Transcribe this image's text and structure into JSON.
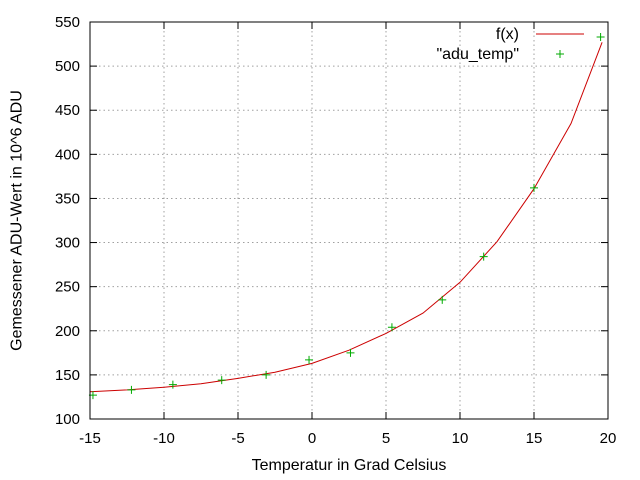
{
  "chart_data": {
    "type": "scatter",
    "xlabel": "Temperatur in Grad Celsius",
    "ylabel": "Gemessener ADU-Wert in 10^6 ADU",
    "xlim": [
      -15,
      20
    ],
    "ylim": [
      100,
      550
    ],
    "x_ticks": [
      -15,
      -10,
      -5,
      0,
      5,
      10,
      15,
      20
    ],
    "y_ticks": [
      100,
      150,
      200,
      250,
      300,
      350,
      400,
      450,
      500,
      550
    ],
    "x_tick_labels": [
      "-15",
      "-10",
      "-5",
      "0",
      "5",
      "10",
      "15",
      "20"
    ],
    "y_tick_labels": [
      "100",
      "150",
      "200",
      "250",
      "300",
      "350",
      "400",
      "450",
      "500",
      "550"
    ],
    "grid": true,
    "legend_position": "top-right",
    "series": [
      {
        "name": "f(x)",
        "kind": "line",
        "color": "#cc0000",
        "x": [
          -15,
          -12.5,
          -10,
          -7.5,
          -5,
          -2.5,
          0,
          2.5,
          5,
          7.5,
          10,
          12.5,
          15,
          17.5,
          19.6
        ],
        "y": [
          131,
          133,
          136,
          140,
          146,
          153,
          163,
          178,
          197,
          220,
          255,
          301,
          361,
          435,
          527
        ]
      },
      {
        "name": "\"adu_temp\"",
        "kind": "points",
        "marker": "+",
        "color": "#00aa00",
        "x": [
          -14.8,
          -12.2,
          -9.4,
          -6.1,
          -3.1,
          -0.2,
          2.6,
          5.4,
          8.8,
          11.6,
          15.0,
          19.5
        ],
        "y": [
          127,
          133,
          139,
          144,
          150,
          167,
          175,
          204,
          235,
          284,
          362,
          533
        ]
      }
    ]
  }
}
